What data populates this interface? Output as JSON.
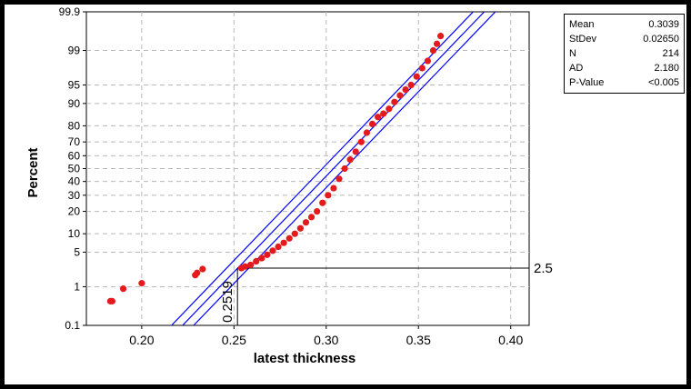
{
  "chart_data": {
    "type": "scatter",
    "scale": "normal-probability",
    "xlabel": "latest thickness",
    "ylabel": "Percent",
    "xlim": [
      0.17,
      0.41
    ],
    "x_ticks": [
      "0.20",
      "0.25",
      "0.30",
      "0.35",
      "0.40"
    ],
    "x_tick_values": [
      0.2,
      0.25,
      0.3,
      0.35,
      0.4
    ],
    "y_ticks": [
      "0.1",
      "1",
      "5",
      "10",
      "20",
      "30",
      "40",
      "50",
      "60",
      "70",
      "80",
      "90",
      "95",
      "99",
      "99.9"
    ],
    "y_tick_values": [
      0.1,
      1,
      5,
      10,
      20,
      30,
      40,
      50,
      60,
      70,
      80,
      90,
      95,
      99,
      99.9
    ],
    "grid": true,
    "series": [
      {
        "color": "#e41a1c",
        "points": [
          [
            0.183,
            0.45
          ],
          [
            0.184,
            0.45
          ],
          [
            0.19,
            0.9
          ],
          [
            0.2,
            1.2
          ],
          [
            0.229,
            1.8
          ],
          [
            0.23,
            2.0
          ],
          [
            0.233,
            2.4
          ],
          [
            0.254,
            2.5
          ],
          [
            0.256,
            2.7
          ],
          [
            0.259,
            2.9
          ],
          [
            0.262,
            3.4
          ],
          [
            0.265,
            3.9
          ],
          [
            0.268,
            4.5
          ],
          [
            0.271,
            5.3
          ],
          [
            0.274,
            6.2
          ],
          [
            0.277,
            7.2
          ],
          [
            0.28,
            8.5
          ],
          [
            0.283,
            10
          ],
          [
            0.286,
            12
          ],
          [
            0.289,
            14.5
          ],
          [
            0.292,
            17
          ],
          [
            0.295,
            20
          ],
          [
            0.298,
            25
          ],
          [
            0.301,
            30
          ],
          [
            0.304,
            35
          ],
          [
            0.307,
            42
          ],
          [
            0.31,
            50
          ],
          [
            0.313,
            57
          ],
          [
            0.316,
            63
          ],
          [
            0.319,
            70
          ],
          [
            0.322,
            76
          ],
          [
            0.325,
            81
          ],
          [
            0.328,
            84.5
          ],
          [
            0.331,
            86
          ],
          [
            0.334,
            88
          ],
          [
            0.337,
            90.5
          ],
          [
            0.34,
            92.5
          ],
          [
            0.343,
            94
          ],
          [
            0.346,
            95
          ],
          [
            0.349,
            96.5
          ],
          [
            0.352,
            97.6
          ],
          [
            0.355,
            98.3
          ],
          [
            0.358,
            99.0
          ],
          [
            0.36,
            99.3
          ],
          [
            0.362,
            99.55
          ]
        ]
      }
    ],
    "fit_line": {
      "color": "#0000ff",
      "mean": 0.3039,
      "stdev": 0.0265,
      "ci_x_offset": 0.006
    },
    "reference": {
      "x": 0.2519,
      "y": 2.5,
      "x_label": "0.2519",
      "y_label": "2.5"
    }
  },
  "stats": [
    {
      "label": "Mean",
      "value": "0.3039"
    },
    {
      "label": "StDev",
      "value": "0.02650"
    },
    {
      "label": "N",
      "value": "214"
    },
    {
      "label": "AD",
      "value": "2.180"
    },
    {
      "label": "P-Value",
      "value": "<0.005"
    }
  ]
}
